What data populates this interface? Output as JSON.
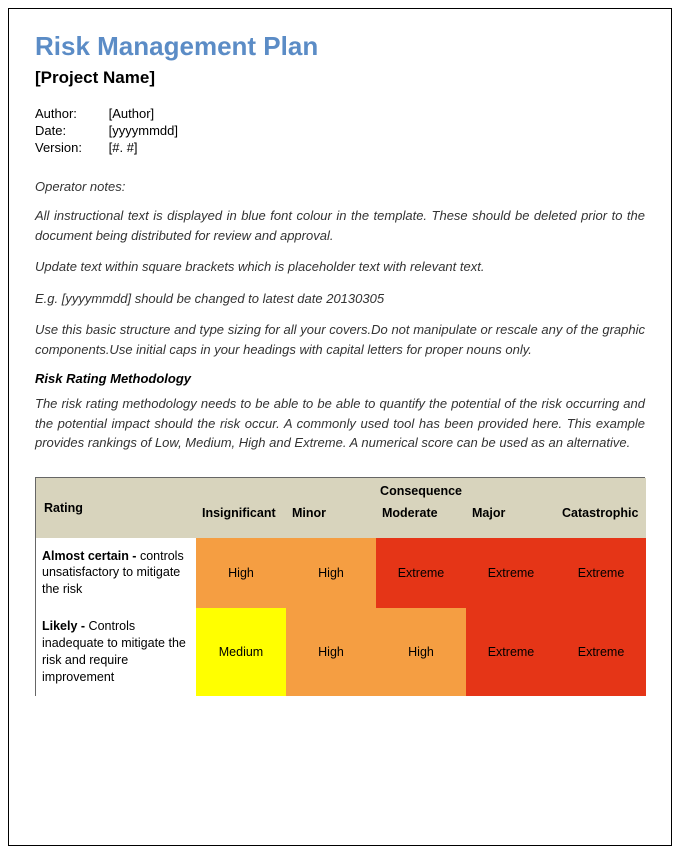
{
  "title": "Risk Management Plan",
  "subtitle": "[Project Name]",
  "meta": {
    "author_label": "Author:",
    "author_value": "[Author]",
    "date_label": "Date:",
    "date_value": "[yyyymmdd]",
    "version_label": "Version:",
    "version_value": "[#. #]"
  },
  "operator_notes_heading": "Operator notes:",
  "notes": {
    "p1": "All instructional text is displayed in blue font colour in the template. These should be deleted prior to the document being distributed for review and approval.",
    "p2": "Update text within square brackets which is placeholder text with relevant text.",
    "p3": "E.g. [yyyymmdd] should be changed to latest date 20130305",
    "p4": "Use this basic structure and type sizing for all your covers.Do not manipulate or rescale any of the graphic components.Use initial caps in your headings with capital letters for proper nouns only."
  },
  "methodology_heading": "Risk Rating Methodology",
  "methodology_body": "The risk rating methodology needs to be able to be able to quantify the potential of the risk occurring and the potential impact should the risk occur.  A commonly used tool has been provided here.  This example provides rankings of Low, Medium, High and Extreme.  A numerical score can be used as an alternative.",
  "matrix": {
    "type": "table",
    "rating_header": "Rating",
    "consequence_header": "Consequence",
    "columns": [
      "Insignificant",
      "Minor",
      "Moderate",
      "Major",
      "Catastrophic"
    ],
    "colors": {
      "header_bg": "#d8d4bd",
      "high": "#f59e42",
      "extreme": "#e53517",
      "medium": "#ffff00",
      "text": "#000000",
      "row_bg": "#ffffff"
    },
    "font_size": 12.5,
    "rows": [
      {
        "label_bold": "Almost certain -",
        "label_rest": " controls unsatisfactory to mitigate the risk",
        "cells": [
          {
            "text": "High",
            "bg": "#f59e42"
          },
          {
            "text": "High",
            "bg": "#f59e42"
          },
          {
            "text": "Extreme",
            "bg": "#e53517"
          },
          {
            "text": "Extreme",
            "bg": "#e53517"
          },
          {
            "text": "Extreme",
            "bg": "#e53517"
          }
        ]
      },
      {
        "label_bold": "Likely -",
        "label_rest": " Controls inadequate to mitigate the risk and require improvement",
        "cells": [
          {
            "text": "Medium",
            "bg": "#ffff00"
          },
          {
            "text": "High",
            "bg": "#f59e42"
          },
          {
            "text": "High",
            "bg": "#f59e42"
          },
          {
            "text": "Extreme",
            "bg": "#e53517"
          },
          {
            "text": "Extreme",
            "bg": "#e53517"
          }
        ]
      }
    ]
  }
}
